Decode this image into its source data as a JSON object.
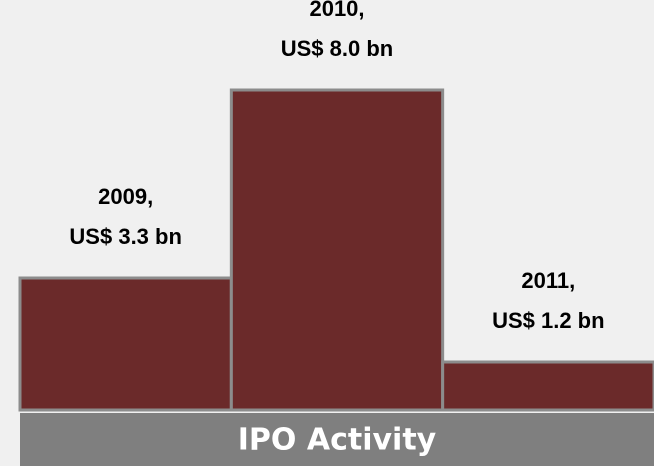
{
  "chart_data": {
    "type": "bar",
    "title": "IPO Activity",
    "categories": [
      "2009,",
      "2010,",
      "2011,"
    ],
    "values": [
      3.3,
      8.0,
      1.2
    ],
    "value_labels": [
      "US$ 3.3 bn",
      "US$ 8.0 bn",
      "US$ 1.2 bn"
    ],
    "color": "#6b2a2a"
  }
}
